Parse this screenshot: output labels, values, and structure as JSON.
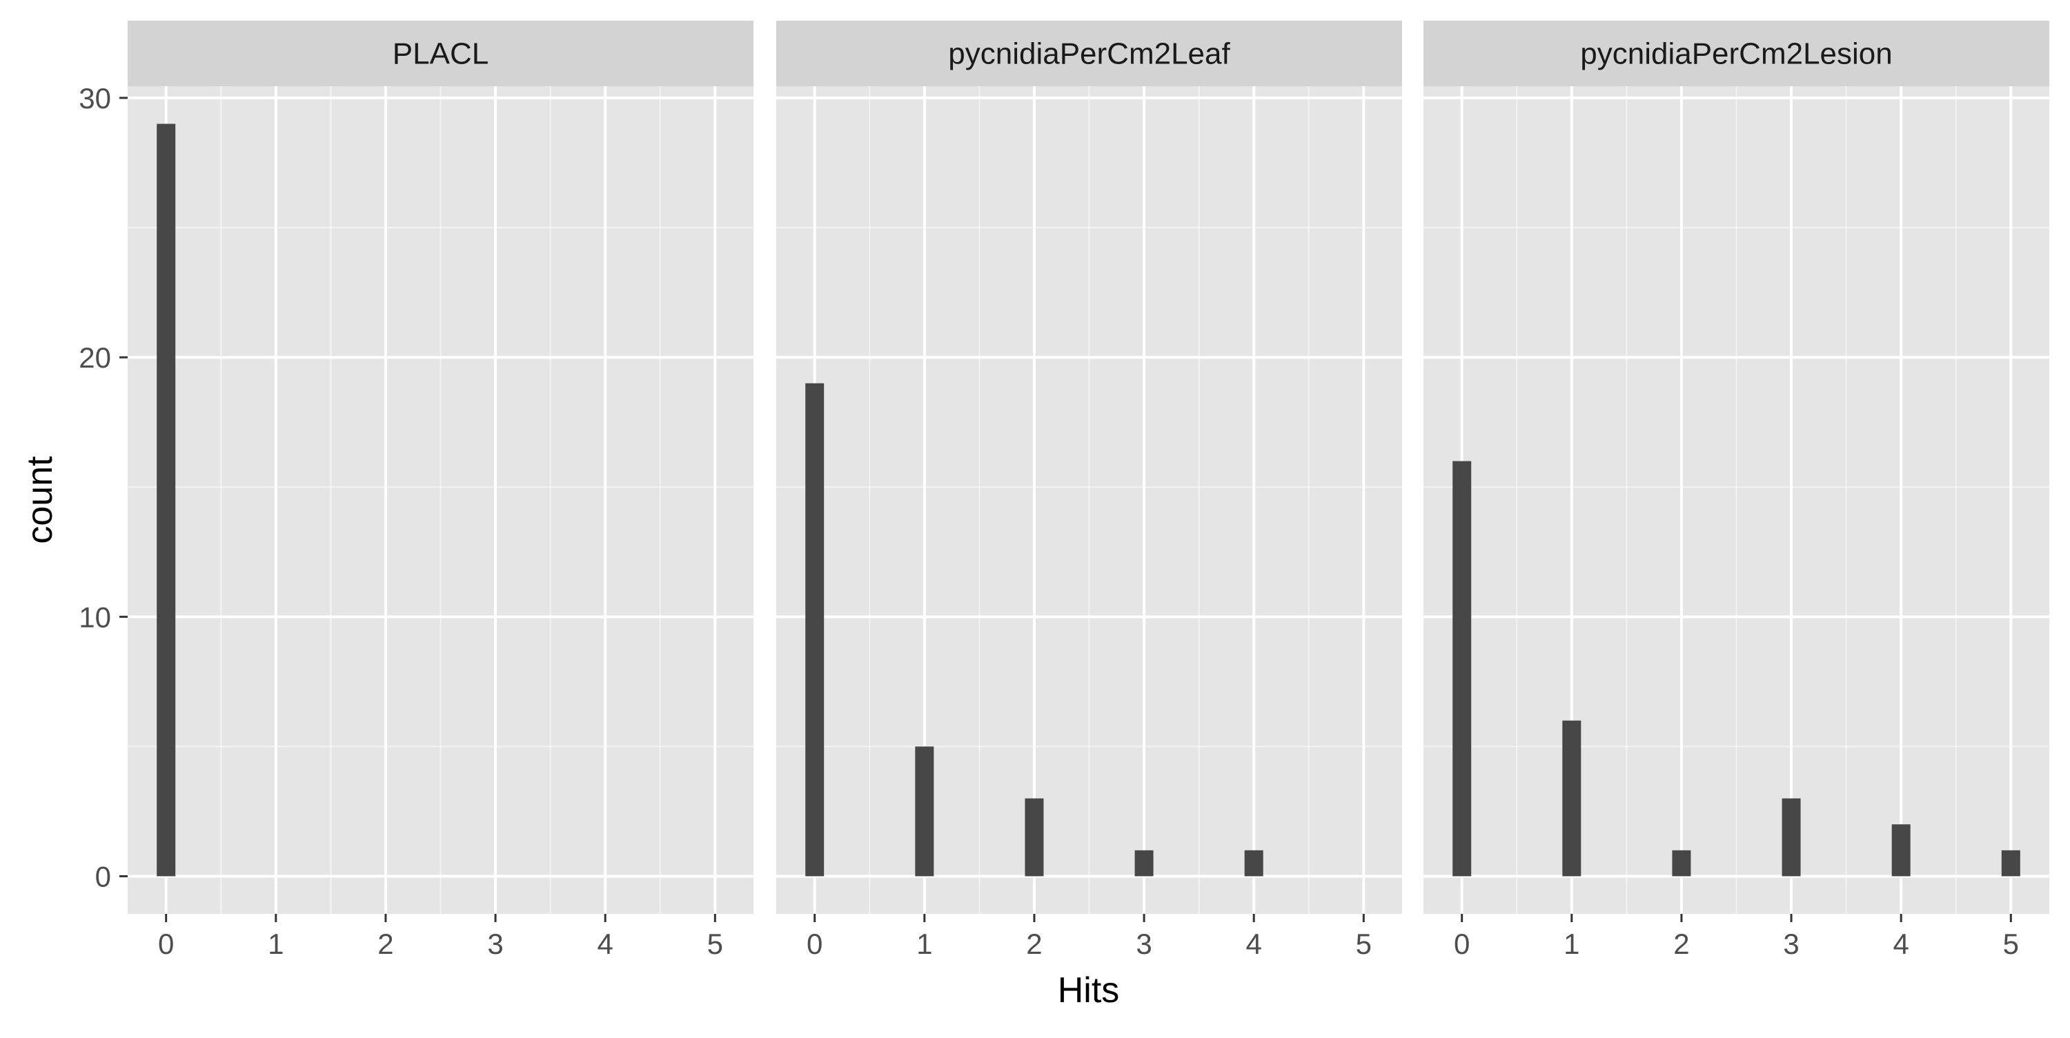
{
  "chart_data": {
    "type": "bar",
    "xlabel": "Hits",
    "ylabel": "count",
    "x_ticks": [
      0,
      1,
      2,
      3,
      4,
      5
    ],
    "y_ticks": [
      0,
      10,
      20,
      30
    ],
    "xlim": [
      -0.35,
      5.35
    ],
    "ylim": [
      -1.45,
      30.45
    ],
    "grid": true,
    "colors": {
      "bar": "#474747",
      "panel_bg": "#e5e5e5",
      "strip_bg": "#d3d3d3",
      "grid": "#ffffff",
      "text": "#4d4d4d",
      "title_text": "#1a1a1a"
    },
    "panels": [
      {
        "strip": "PLACL",
        "x": [
          0
        ],
        "values": [
          29
        ]
      },
      {
        "strip": "pycnidiaPerCm2Leaf",
        "x": [
          0,
          1,
          2,
          3,
          4
        ],
        "values": [
          19,
          5,
          3,
          1,
          1
        ]
      },
      {
        "strip": "pycnidiaPerCm2Lesion",
        "x": [
          0,
          1,
          2,
          3,
          4,
          5
        ],
        "values": [
          16,
          6,
          1,
          3,
          2,
          1
        ]
      }
    ]
  }
}
